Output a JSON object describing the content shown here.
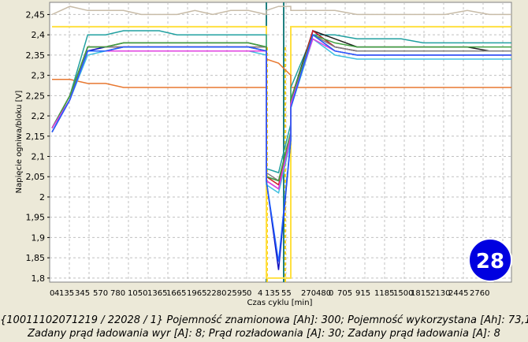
{
  "chart_data": {
    "type": "line",
    "xlabel": "Czas cyklu [min]",
    "ylabel": "Napięcie ogniwa/bloku [V]",
    "x_tick_labels": [
      "0",
      "4",
      "135",
      "345",
      "570",
      "780",
      "1050",
      "1365",
      "1665",
      "1965",
      "2280",
      "2595",
      "0",
      "4",
      "135",
      "55",
      "270",
      "480",
      "0",
      "705",
      "915",
      "1185",
      "1500",
      "1815",
      "2130",
      "2445",
      "2760"
    ],
    "yticks": [
      1.8,
      1.85,
      1.9,
      1.95,
      2,
      2.05,
      2.1,
      2.15,
      2.2,
      2.25,
      2.3,
      2.35,
      2.4,
      2.45
    ],
    "ytick_labels": [
      "1,8",
      "1,85",
      "1,9",
      "1,95",
      "2",
      "2,05",
      "2,1",
      "2,15",
      "2,2",
      "2,25",
      "2,3",
      "2,35",
      "2,4",
      "2,45"
    ],
    "ylim": [
      1.79,
      2.48
    ],
    "grid": true,
    "badge": "28",
    "segments": [
      {
        "name": "charge",
        "x": [
          0,
          2665
        ]
      },
      {
        "name": "discharge",
        "x": [
          0,
          150
        ]
      },
      {
        "name": "charge",
        "x": [
          0,
          2790
        ]
      }
    ],
    "series": [
      {
        "color": "#c8bca8",
        "values": [
          2.45,
          2.47,
          2.46,
          2.46,
          2.46,
          2.45,
          2.45,
          2.45,
          2.46,
          2.45,
          2.46,
          2.46,
          2.45,
          2.46,
          2.47,
          2.47,
          2.46,
          2.46,
          2.46,
          2.45,
          2.45,
          2.45,
          2.45,
          2.45,
          2.46,
          2.45,
          2.45
        ]
      },
      {
        "color": "#ffe040",
        "values": [
          2.42,
          2.42,
          2.42,
          2.42,
          2.42,
          2.42,
          2.42,
          2.42,
          2.42,
          2.42,
          2.42,
          2.42,
          2.42,
          1.8,
          1.8,
          1.8,
          2.42,
          2.42,
          2.42,
          2.42,
          2.42,
          2.42,
          2.42,
          2.42,
          2.42,
          2.42,
          2.42
        ]
      },
      {
        "color": "#e87830",
        "values": [
          2.29,
          2.29,
          2.28,
          2.28,
          2.27,
          2.27,
          2.27,
          2.27,
          2.27,
          2.27,
          2.27,
          2.27,
          2.27,
          2.34,
          2.33,
          2.3,
          2.27,
          2.27,
          2.27,
          2.27,
          2.27,
          2.27,
          2.27,
          2.27,
          2.27,
          2.27,
          2.27
        ]
      },
      {
        "color": "#20a0a0",
        "values": [
          2.17,
          2.25,
          2.4,
          2.4,
          2.41,
          2.41,
          2.41,
          2.4,
          2.4,
          2.4,
          2.4,
          2.4,
          2.4,
          2.07,
          2.06,
          2.18,
          2.27,
          2.4,
          2.4,
          2.39,
          2.39,
          2.39,
          2.38,
          2.38,
          2.38,
          2.38,
          2.38
        ]
      },
      {
        "color": "#202020",
        "values": [
          2.17,
          2.25,
          2.37,
          2.37,
          2.38,
          2.38,
          2.38,
          2.38,
          2.38,
          2.38,
          2.38,
          2.38,
          2.37,
          2.05,
          2.04,
          2.16,
          2.24,
          2.41,
          2.39,
          2.37,
          2.37,
          2.37,
          2.37,
          2.37,
          2.37,
          2.36,
          2.36
        ]
      },
      {
        "color": "#1010c0",
        "values": [
          2.16,
          2.24,
          2.36,
          2.37,
          2.37,
          2.37,
          2.37,
          2.37,
          2.37,
          2.37,
          2.37,
          2.37,
          2.36,
          2.04,
          1.82,
          2.14,
          2.22,
          2.41,
          2.37,
          2.36,
          2.36,
          2.36,
          2.36,
          2.36,
          2.36,
          2.36,
          2.36
        ]
      },
      {
        "color": "#d02020",
        "values": [
          2.16,
          2.24,
          2.37,
          2.37,
          2.37,
          2.37,
          2.37,
          2.37,
          2.37,
          2.37,
          2.37,
          2.37,
          2.37,
          2.05,
          2.03,
          2.15,
          2.23,
          2.41,
          2.37,
          2.36,
          2.36,
          2.36,
          2.36,
          2.36,
          2.36,
          2.36,
          2.36
        ]
      },
      {
        "color": "#c02080",
        "values": [
          2.17,
          2.24,
          2.36,
          2.36,
          2.37,
          2.37,
          2.37,
          2.37,
          2.37,
          2.37,
          2.37,
          2.37,
          2.36,
          2.04,
          2.02,
          2.15,
          2.23,
          2.4,
          2.36,
          2.35,
          2.35,
          2.35,
          2.35,
          2.35,
          2.35,
          2.35,
          2.35
        ]
      },
      {
        "color": "#40c0e0",
        "values": [
          2.16,
          2.24,
          2.35,
          2.36,
          2.36,
          2.36,
          2.36,
          2.36,
          2.36,
          2.36,
          2.36,
          2.36,
          2.35,
          2.03,
          2.01,
          2.14,
          2.22,
          2.39,
          2.35,
          2.34,
          2.34,
          2.34,
          2.34,
          2.34,
          2.34,
          2.34,
          2.34
        ]
      },
      {
        "color": "#808080",
        "values": [
          2.17,
          2.25,
          2.37,
          2.37,
          2.37,
          2.37,
          2.37,
          2.37,
          2.37,
          2.37,
          2.37,
          2.37,
          2.37,
          2.06,
          2.04,
          2.16,
          2.24,
          2.4,
          2.37,
          2.36,
          2.36,
          2.36,
          2.36,
          2.36,
          2.36,
          2.36,
          2.36
        ]
      },
      {
        "color": "#40a040",
        "values": [
          2.17,
          2.25,
          2.37,
          2.37,
          2.38,
          2.38,
          2.38,
          2.38,
          2.38,
          2.38,
          2.38,
          2.38,
          2.37,
          2.05,
          2.04,
          2.16,
          2.24,
          2.4,
          2.38,
          2.37,
          2.37,
          2.37,
          2.37,
          2.37,
          2.37,
          2.37,
          2.37
        ]
      },
      {
        "color": "#9040c0",
        "values": [
          2.16,
          2.24,
          2.36,
          2.36,
          2.37,
          2.37,
          2.37,
          2.37,
          2.37,
          2.37,
          2.37,
          2.37,
          2.36,
          2.04,
          2.02,
          2.15,
          2.22,
          2.4,
          2.36,
          2.35,
          2.35,
          2.35,
          2.35,
          2.35,
          2.35,
          2.35,
          2.35
        ]
      },
      {
        "color": "#e040e0",
        "values": [
          2.17,
          2.24,
          2.36,
          2.36,
          2.36,
          2.36,
          2.36,
          2.36,
          2.36,
          2.36,
          2.36,
          2.36,
          2.36,
          2.04,
          2.02,
          2.15,
          2.23,
          2.39,
          2.36,
          2.35,
          2.35,
          2.35,
          2.35,
          2.35,
          2.35,
          2.35,
          2.35
        ]
      },
      {
        "color": "#2060ff",
        "values": [
          2.16,
          2.24,
          2.36,
          2.36,
          2.37,
          2.37,
          2.37,
          2.37,
          2.37,
          2.37,
          2.37,
          2.37,
          2.36,
          2.04,
          1.84,
          2.14,
          2.22,
          2.4,
          2.36,
          2.35,
          2.35,
          2.35,
          2.35,
          2.35,
          2.35,
          2.35,
          2.35
        ]
      }
    ]
  },
  "caption": {
    "line1": "{10011102071219 / 22028 / 1} Pojemność znamionowa [Ah]: 300;  Pojemność wykorzystana [Ah]: 73,1",
    "line2": "Zadany prąd ładowania wyr [A]: 8;  Prąd rozładowania [A]: 30;  Zadany prąd ładowania [A]: 8"
  }
}
